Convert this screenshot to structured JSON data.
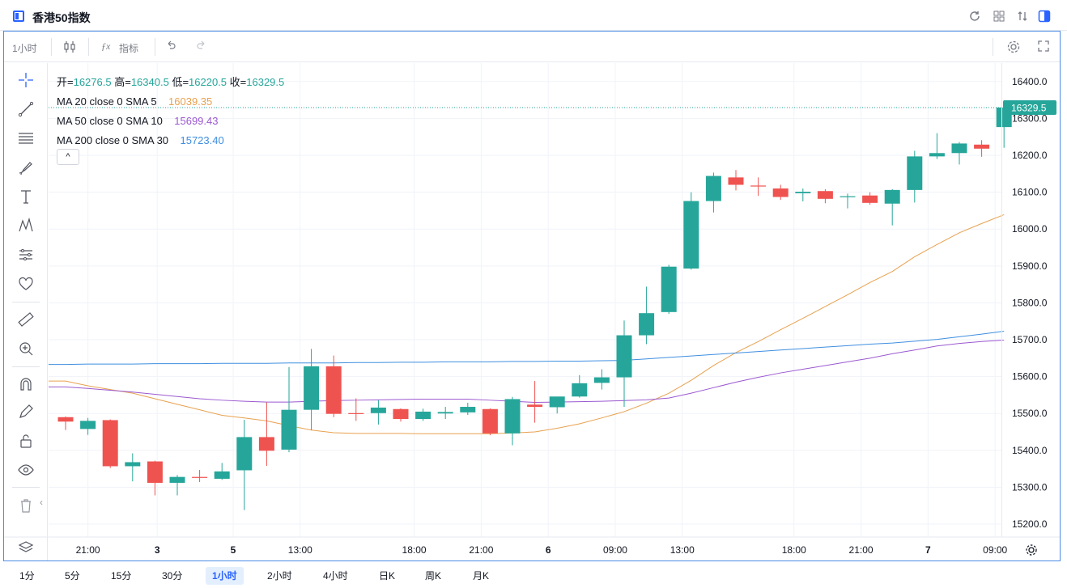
{
  "window": {
    "title": "香港50指数"
  },
  "toolbar": {
    "interval": "1小时",
    "indicators_label": "指标"
  },
  "legend": {
    "ohlc": [
      {
        "label": "开=",
        "value": "16276.5"
      },
      {
        "label": "高=",
        "value": "16340.5"
      },
      {
        "label": "低=",
        "value": "16220.5"
      },
      {
        "label": "收=",
        "value": "16329.5"
      }
    ],
    "ma": [
      {
        "label": "MA 20 close 0 SMA 5",
        "value": "16039.35",
        "color": "#e8a14f"
      },
      {
        "label": "MA 50 close 0 SMA 10",
        "value": "15699.43",
        "color": "#9b59d0"
      },
      {
        "label": "MA 200 close 0 SMA 30",
        "value": "15723.40",
        "color": "#3f8fe0"
      }
    ],
    "collapse_glyph": "^"
  },
  "colors": {
    "up": "#26a69a",
    "down": "#ef5350",
    "accent": "#2962ff"
  },
  "price_scale": {
    "ticks": [
      "16400.0",
      "16300.0",
      "16200.0",
      "16100.0",
      "16000.0",
      "15900.0",
      "15800.0",
      "15700.0",
      "15600.0",
      "15500.0",
      "15400.0",
      "15300.0",
      "15200.0"
    ],
    "last_price": "16329.5"
  },
  "time_scale": {
    "ticks": [
      {
        "label": "21:00",
        "bold": false
      },
      {
        "label": "3",
        "bold": true
      },
      {
        "label": "5",
        "bold": true
      },
      {
        "label": "13:00",
        "bold": false
      },
      {
        "label": "18:00",
        "bold": false
      },
      {
        "label": "21:00",
        "bold": false
      },
      {
        "label": "6",
        "bold": true
      },
      {
        "label": "09:00",
        "bold": false
      },
      {
        "label": "13:00",
        "bold": false
      },
      {
        "label": "18:00",
        "bold": false
      },
      {
        "label": "21:00",
        "bold": false
      },
      {
        "label": "7",
        "bold": true
      },
      {
        "label": "09:00",
        "bold": false
      }
    ]
  },
  "intervals": [
    {
      "label": "1分",
      "active": false
    },
    {
      "label": "5分",
      "active": false
    },
    {
      "label": "15分",
      "active": false
    },
    {
      "label": "30分",
      "active": false
    },
    {
      "label": "1小时",
      "active": true
    },
    {
      "label": "2小时",
      "active": false
    },
    {
      "label": "4小时",
      "active": false
    },
    {
      "label": "日K",
      "active": false
    },
    {
      "label": "周K",
      "active": false
    },
    {
      "label": "月K",
      "active": false
    }
  ],
  "chart_data": {
    "type": "candlestick",
    "ylim": [
      15165,
      16450
    ],
    "candles": [
      {
        "o": 15490,
        "h": 15492,
        "l": 15455,
        "c": 15478
      },
      {
        "o": 15458,
        "h": 15488,
        "l": 15442,
        "c": 15480
      },
      {
        "o": 15482,
        "h": 15484,
        "l": 15352,
        "c": 15357
      },
      {
        "o": 15357,
        "h": 15392,
        "l": 15316,
        "c": 15368
      },
      {
        "o": 15370,
        "h": 15372,
        "l": 15278,
        "c": 15312
      },
      {
        "o": 15312,
        "h": 15333,
        "l": 15278,
        "c": 15328
      },
      {
        "o": 15328,
        "h": 15347,
        "l": 15314,
        "c": 15326
      },
      {
        "o": 15323,
        "h": 15366,
        "l": 15320,
        "c": 15343
      },
      {
        "o": 15346,
        "h": 15483,
        "l": 15238,
        "c": 15436
      },
      {
        "o": 15436,
        "h": 15530,
        "l": 15358,
        "c": 15399
      },
      {
        "o": 15402,
        "h": 15626,
        "l": 15395,
        "c": 15510
      },
      {
        "o": 15510,
        "h": 15675,
        "l": 15455,
        "c": 15628
      },
      {
        "o": 15628,
        "h": 15657,
        "l": 15490,
        "c": 15499
      },
      {
        "o": 15501,
        "h": 15541,
        "l": 15480,
        "c": 15499
      },
      {
        "o": 15501,
        "h": 15536,
        "l": 15470,
        "c": 15516
      },
      {
        "o": 15512,
        "h": 15514,
        "l": 15478,
        "c": 15485
      },
      {
        "o": 15485,
        "h": 15513,
        "l": 15480,
        "c": 15505
      },
      {
        "o": 15500,
        "h": 15518,
        "l": 15485,
        "c": 15504
      },
      {
        "o": 15503,
        "h": 15529,
        "l": 15496,
        "c": 15518
      },
      {
        "o": 15512,
        "h": 15514,
        "l": 15441,
        "c": 15446
      },
      {
        "o": 15446,
        "h": 15545,
        "l": 15414,
        "c": 15539
      },
      {
        "o": 15524,
        "h": 15588,
        "l": 15475,
        "c": 15518
      },
      {
        "o": 15517,
        "h": 15545,
        "l": 15500,
        "c": 15546
      },
      {
        "o": 15546,
        "h": 15604,
        "l": 15543,
        "c": 15582
      },
      {
        "o": 15583,
        "h": 15620,
        "l": 15565,
        "c": 15598
      },
      {
        "o": 15598,
        "h": 15752,
        "l": 15518,
        "c": 15712
      },
      {
        "o": 15712,
        "h": 15844,
        "l": 15688,
        "c": 15772
      },
      {
        "o": 15775,
        "h": 15903,
        "l": 15770,
        "c": 15898
      },
      {
        "o": 15893,
        "h": 16100,
        "l": 15890,
        "c": 16076
      },
      {
        "o": 16076,
        "h": 16153,
        "l": 16045,
        "c": 16144
      },
      {
        "o": 16140,
        "h": 16160,
        "l": 16105,
        "c": 16120
      },
      {
        "o": 16118,
        "h": 16140,
        "l": 16090,
        "c": 16117
      },
      {
        "o": 16110,
        "h": 16120,
        "l": 16079,
        "c": 16087
      },
      {
        "o": 16097,
        "h": 16110,
        "l": 16075,
        "c": 16101
      },
      {
        "o": 16103,
        "h": 16108,
        "l": 16070,
        "c": 16082
      },
      {
        "o": 16087,
        "h": 16096,
        "l": 16056,
        "c": 16089
      },
      {
        "o": 16091,
        "h": 16100,
        "l": 16066,
        "c": 16071
      },
      {
        "o": 16069,
        "h": 16108,
        "l": 16010,
        "c": 16106
      },
      {
        "o": 16106,
        "h": 16212,
        "l": 16072,
        "c": 16197
      },
      {
        "o": 16197,
        "h": 16260,
        "l": 16190,
        "c": 16206
      },
      {
        "o": 16206,
        "h": 16236,
        "l": 16175,
        "c": 16232
      },
      {
        "o": 16229,
        "h": 16241,
        "l": 16196,
        "c": 16218
      },
      {
        "o": 16276.5,
        "h": 16340.5,
        "l": 16220.5,
        "c": 16329.5
      }
    ],
    "series": [
      {
        "name": "MA 20 close 0 SMA 5",
        "color": "#e8a14f",
        "values": [
          15588,
          15575,
          15565,
          15555,
          15540,
          15525,
          15510,
          15495,
          15488,
          15480,
          15467,
          15455,
          15448,
          15446,
          15446,
          15446,
          15445,
          15445,
          15445,
          15445,
          15447,
          15450,
          15460,
          15472,
          15488,
          15505,
          15528,
          15555,
          15590,
          15630,
          15665,
          15695,
          15727,
          15758,
          15790,
          15822,
          15855,
          15885,
          15925,
          15958,
          15990,
          16015,
          16039
        ]
      },
      {
        "name": "MA 50 close 0 SMA 10",
        "color": "#9b59d0",
        "values": [
          15572,
          15568,
          15563,
          15558,
          15552,
          15546,
          15540,
          15536,
          15533,
          15531,
          15531,
          15533,
          15535,
          15536,
          15537,
          15538,
          15539,
          15539,
          15539,
          15536,
          15533,
          15530,
          15531,
          15532,
          15533,
          15535,
          15537,
          15542,
          15555,
          15570,
          15585,
          15598,
          15610,
          15620,
          15630,
          15640,
          15650,
          15662,
          15672,
          15683,
          15690,
          15695,
          15699
        ]
      },
      {
        "name": "MA 200 close 0 SMA 30",
        "color": "#3f8fe0",
        "values": [
          15633,
          15634,
          15634,
          15634,
          15635,
          15635,
          15635,
          15636,
          15636,
          15636,
          15637,
          15637,
          15637,
          15638,
          15638,
          15639,
          15639,
          15640,
          15640,
          15640,
          15641,
          15641,
          15642,
          15642,
          15643,
          15644,
          15648,
          15652,
          15656,
          15660,
          15664,
          15668,
          15672,
          15676,
          15680,
          15684,
          15688,
          15691,
          15696,
          15701,
          15708,
          15715,
          15723
        ]
      }
    ]
  }
}
